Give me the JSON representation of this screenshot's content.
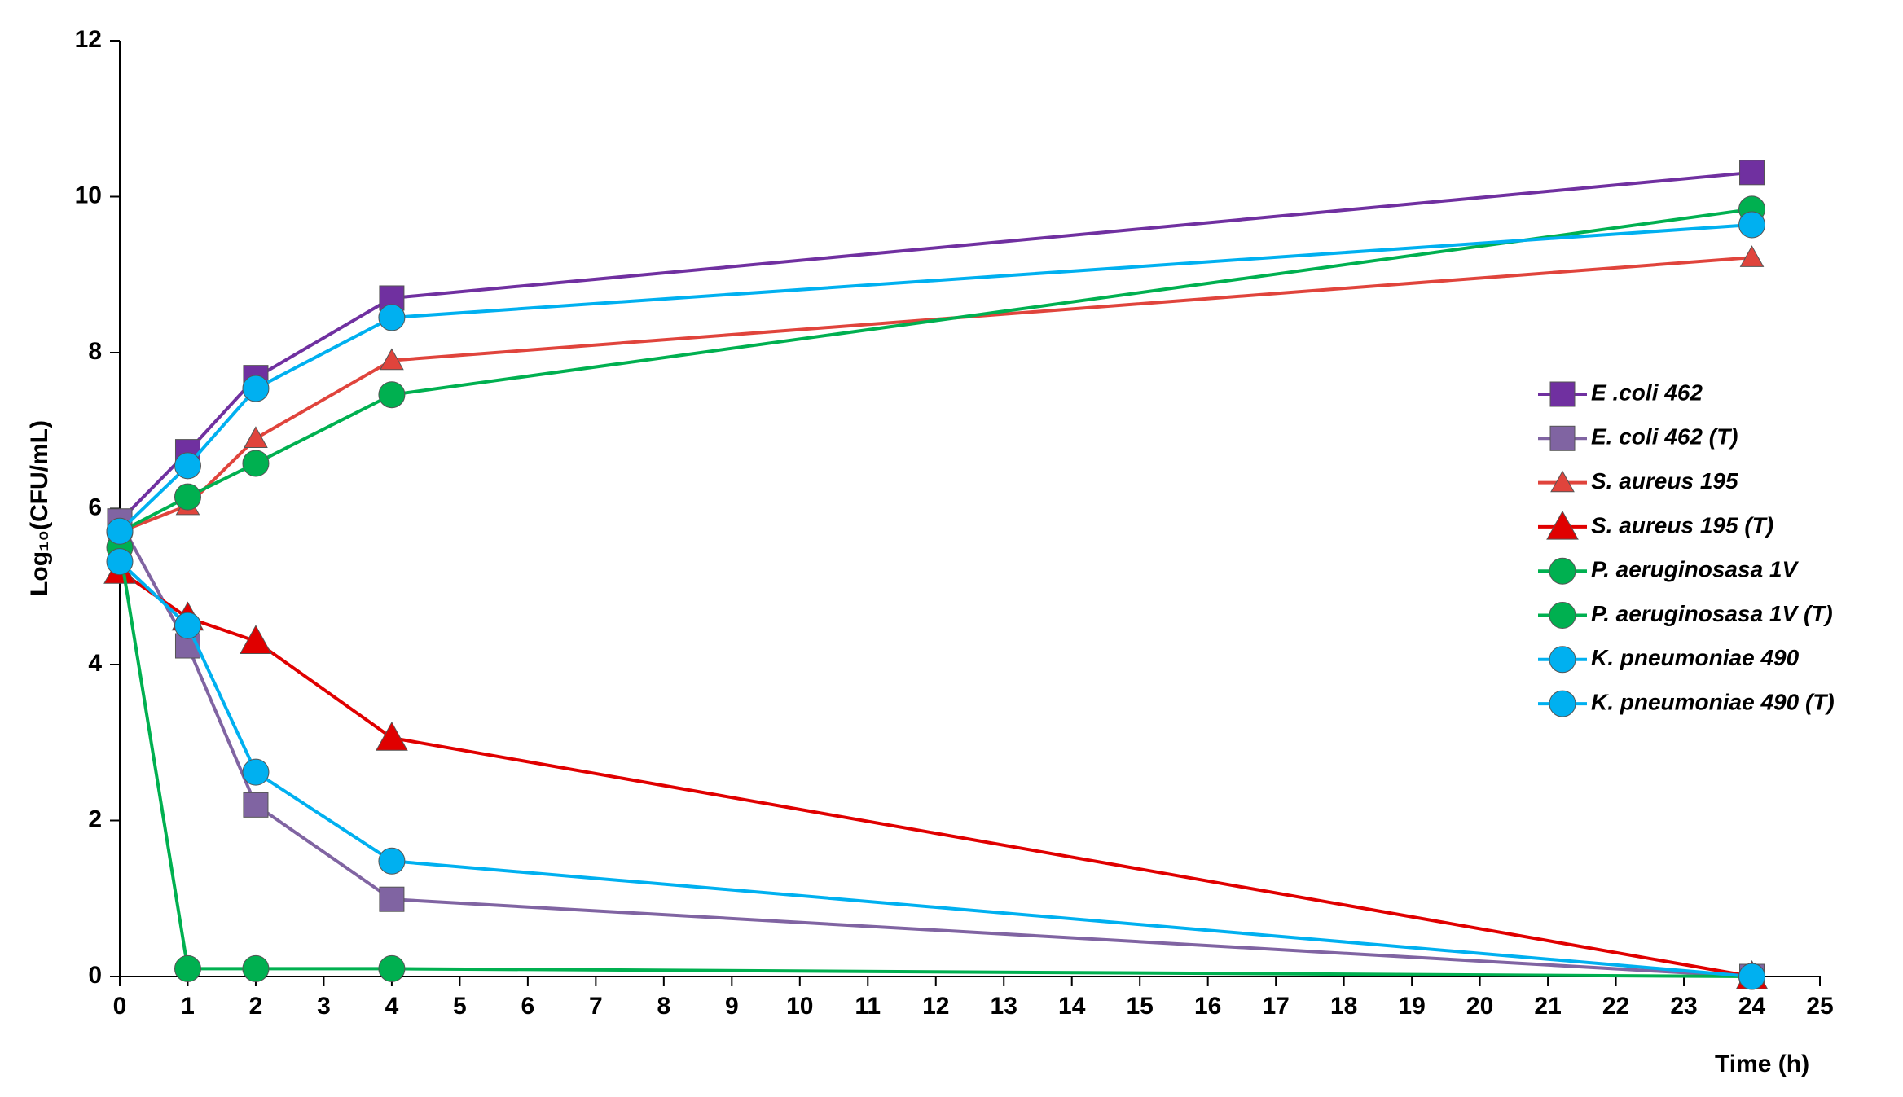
{
  "chart_data": {
    "type": "line",
    "x_label": "Time (h)",
    "y_label": "Log₁₀(CFU/mL)",
    "x": [
      0,
      1,
      2,
      4,
      24
    ],
    "xlim": [
      0,
      25
    ],
    "xticks": [
      0,
      1,
      2,
      3,
      4,
      5,
      6,
      7,
      8,
      9,
      10,
      11,
      12,
      13,
      14,
      15,
      16,
      17,
      18,
      19,
      20,
      21,
      22,
      23,
      24,
      25
    ],
    "ylim": [
      0,
      12
    ],
    "yticks": [
      0,
      2,
      4,
      6,
      8,
      10,
      12
    ],
    "series": [
      {
        "name": "E .coli 462",
        "color": "#7030a0",
        "marker": "square",
        "values": [
          5.84,
          6.73,
          7.68,
          8.7,
          10.31
        ]
      },
      {
        "name": "E. coli 462 (T)",
        "color": "#8064a2",
        "marker": "square",
        "values": [
          5.84,
          4.24,
          2.2,
          0.99,
          0
        ]
      },
      {
        "name": "S. aureus 195",
        "color": "#e0443c",
        "marker": "triangle-small",
        "values": [
          5.7,
          6.04,
          6.9,
          7.9,
          9.22
        ]
      },
      {
        "name": "S. aureus 195 (T)",
        "color": "#e00000",
        "marker": "triangle",
        "values": [
          5.2,
          4.6,
          4.3,
          3.06,
          0
        ]
      },
      {
        "name": "P. aeruginosasa 1V",
        "color": "#00b050",
        "marker": "circle",
        "values": [
          5.7,
          6.15,
          6.58,
          7.46,
          9.84
        ]
      },
      {
        "name": "P. aeruginosasa 1V (T)",
        "color": "#00b050",
        "marker": "circle",
        "values": [
          5.5,
          0.1,
          0.1,
          0.1,
          0
        ]
      },
      {
        "name": "K. pneumoniae 490",
        "color": "#00b0f0",
        "marker": "circle",
        "values": [
          5.71,
          6.55,
          7.54,
          8.45,
          9.64
        ]
      },
      {
        "name": "K. pneumoniae 490 (T)",
        "color": "#00b0f0",
        "marker": "circle",
        "values": [
          5.32,
          4.5,
          2.62,
          1.48,
          0
        ]
      }
    ]
  }
}
